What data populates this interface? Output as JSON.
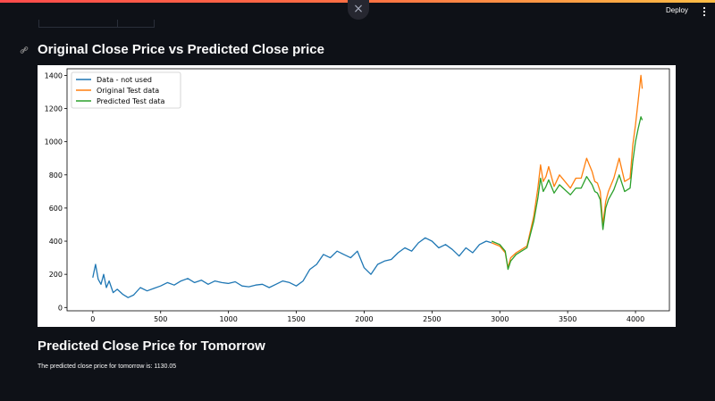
{
  "app": {
    "deploy_label": "Deploy",
    "menu_icon": "more-vertical-icon",
    "close_icon": "×",
    "anchor_icon": "🔗"
  },
  "main": {
    "chart_title": "Original Close Price vs Predicted Close price",
    "prediction_title": "Predicted Close Price for Tomorrow",
    "prediction_text": "The predicted close price for tomorrow is: 1130.05"
  },
  "colors": {
    "background": "#0e1117",
    "series_not_used": "#1f77b4",
    "series_original": "#ff7f0e",
    "series_predicted": "#2ca02c"
  },
  "chart_data": {
    "type": "line",
    "title": "",
    "xlabel": "",
    "ylabel": "",
    "xlim": [
      -190,
      4250
    ],
    "ylim": [
      -20,
      1440
    ],
    "xticks": [
      0,
      500,
      1000,
      1500,
      2000,
      2500,
      3000,
      3500,
      4000
    ],
    "yticks": [
      0,
      200,
      400,
      600,
      800,
      1000,
      1200,
      1400
    ],
    "legend_position": "top-left",
    "series": [
      {
        "name": "Data - not used",
        "x": [
          0,
          20,
          40,
          60,
          80,
          100,
          120,
          150,
          180,
          220,
          260,
          300,
          350,
          400,
          450,
          500,
          550,
          600,
          650,
          700,
          750,
          800,
          850,
          900,
          950,
          1000,
          1050,
          1100,
          1150,
          1200,
          1250,
          1300,
          1350,
          1400,
          1450,
          1500,
          1550,
          1600,
          1650,
          1700,
          1750,
          1800,
          1850,
          1900,
          1950,
          2000,
          2050,
          2100,
          2150,
          2200,
          2250,
          2300,
          2350,
          2400,
          2450,
          2500,
          2550,
          2600,
          2650,
          2700,
          2750,
          2800,
          2850,
          2900,
          2940
        ],
        "y": [
          180,
          260,
          170,
          140,
          200,
          120,
          160,
          90,
          110,
          80,
          60,
          75,
          120,
          100,
          115,
          130,
          150,
          135,
          160,
          175,
          150,
          165,
          140,
          160,
          150,
          145,
          155,
          130,
          125,
          135,
          140,
          120,
          140,
          160,
          150,
          130,
          160,
          230,
          260,
          320,
          300,
          340,
          320,
          300,
          340,
          240,
          200,
          260,
          280,
          290,
          330,
          360,
          340,
          390,
          420,
          400,
          360,
          380,
          350,
          310,
          360,
          330,
          380,
          400,
          390
        ]
      },
      {
        "name": "Original Test data",
        "x": [
          2940,
          3000,
          3040,
          3060,
          3080,
          3120,
          3160,
          3200,
          3250,
          3280,
          3300,
          3320,
          3340,
          3360,
          3400,
          3440,
          3480,
          3520,
          3560,
          3600,
          3640,
          3680,
          3700,
          3720,
          3740,
          3760,
          3780,
          3800,
          3840,
          3880,
          3920,
          3960,
          3980,
          4000,
          4020,
          4040,
          4050
        ],
        "y": [
          390,
          370,
          330,
          240,
          300,
          330,
          350,
          370,
          550,
          720,
          860,
          760,
          790,
          850,
          730,
          800,
          760,
          720,
          780,
          780,
          900,
          820,
          760,
          750,
          700,
          500,
          640,
          700,
          780,
          900,
          760,
          780,
          980,
          1100,
          1250,
          1400,
          1320
        ]
      },
      {
        "name": "Predicted Test data",
        "x": [
          2940,
          3000,
          3040,
          3060,
          3080,
          3120,
          3160,
          3200,
          3250,
          3280,
          3300,
          3320,
          3340,
          3360,
          3400,
          3440,
          3480,
          3520,
          3560,
          3600,
          3640,
          3680,
          3700,
          3720,
          3740,
          3760,
          3780,
          3800,
          3840,
          3880,
          3920,
          3960,
          3980,
          4000,
          4020,
          4040,
          4050
        ],
        "y": [
          400,
          380,
          340,
          230,
          280,
          320,
          340,
          360,
          520,
          660,
          780,
          700,
          730,
          770,
          690,
          740,
          710,
          680,
          720,
          720,
          790,
          740,
          700,
          690,
          650,
          470,
          600,
          650,
          710,
          800,
          700,
          720,
          880,
          1000,
          1080,
          1150,
          1130
        ]
      }
    ]
  }
}
